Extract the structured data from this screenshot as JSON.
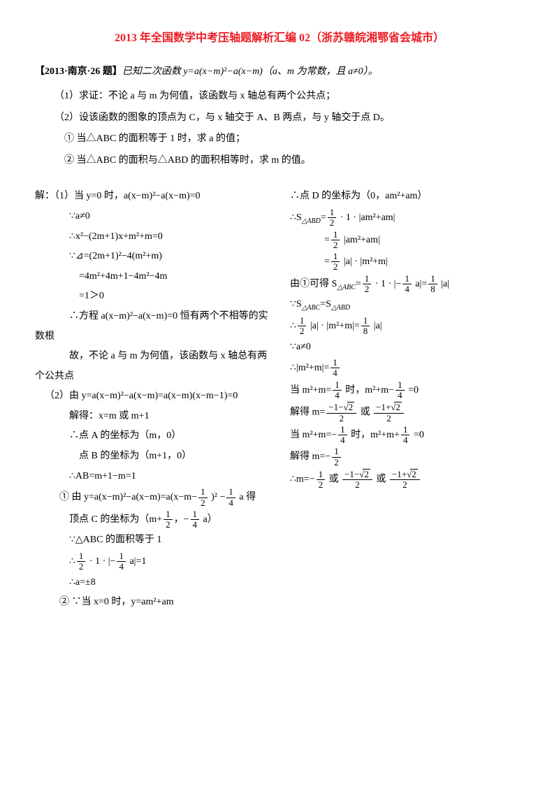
{
  "title": "2013 年全国数学中考压轴题解析汇编 02（浙苏赣皖湘鄂省会城市）",
  "header": {
    "tag": "【2013·南京·26 题】",
    "stem": "已知二次函数 y=a(x−m)²−a(x−m)（a、m 为常数，且 a≠0）。"
  },
  "q1": "（1）求证：不论 a 与 m 为何值，该函数与 x 轴总有两个公共点；",
  "q2": "（2）设该函数的图象的顶点为 C，与 x 轴交于 A、B 两点，与 y 轴交于点 D。",
  "q2a": "① 当△ABC 的面积等于 1 时，求 a 的值；",
  "q2b": "② 当△ABC 的面积与△ABD 的面积相等时，求 m 的值。",
  "left": {
    "l1": "解：（1）当 y=0 时，a(x−m)²−a(x−m)=0",
    "l2": "∵a≠0",
    "l3": "∴x²−(2m+1)x+m²+m=0",
    "l4": "∵⊿=(2m+1)²−4(m²+m)",
    "l5": "=4m²+4m+1−4m²−4m",
    "l6": "=1＞0",
    "l7": "∴方程 a(x−m)²−a(x−m)=0 恒有两个不相等的实",
    "l7b": "数根",
    "l8": "故，不论 a 与 m 为何值，该函数与 x 轴总有两",
    "l8b": "个公共点",
    "l9": "（2）由 y=a(x−m)²−a(x−m)=a(x−m)(x−m−1)=0",
    "l10": "解得：x=m 或 m+1",
    "l11": "∴点 A 的坐标为（m，0）",
    "l12": "点 B 的坐标为（m+1，0）",
    "l13": "∴AB=m+1−m=1",
    "l14a": "① 由 y=a(x−m)²−a(x−m)=a(x−m−",
    "l14b": " )² −",
    "l14c": " a 得",
    "l15a": "顶点 C 的坐标为（m+",
    "l15b": "，−",
    "l15c": " a）",
    "l16": "∵△ABC 的面积等于 1",
    "l17a": "∴",
    "l17b": " · 1 · |−",
    "l17c": " a|=1",
    "l18": "∴a=±8",
    "l19": "② ∵当 x=0 时，y=am²+am"
  },
  "right": {
    "r1": "∴点 D 的坐标为（0，am²+am）",
    "r2a": "∴S",
    "r2sub": "△ABD",
    "r2b": "=",
    "r2c": " · 1 · |am²+am|",
    "r3a": "=",
    "r3b": " |am²+am|",
    "r4a": "=",
    "r4b": " |a| · |m²+m|",
    "r5a": "由①可得 S",
    "r5sub": "△ABC",
    "r5b": "=",
    "r5c": " · 1 · |−",
    "r5d": " a|=",
    "r5e": " |a|",
    "r6a": "∵S",
    "r6sub1": "△ABC",
    "r6b": "=S",
    "r6sub2": "△ABD",
    "r7a": "∴",
    "r7b": " |a| · |m²+m|=",
    "r7c": " |a|",
    "r8": "∵a≠0",
    "r9a": "∴|m²+m|=",
    "r10a": "当 m²+m=",
    "r10b": " 时，m²+m−",
    "r10c": " =0",
    "r11a": "解得 m=",
    "r11n1": "−1−",
    "r11n2": "−1+",
    "r11b": " 或 ",
    "r12a": "当 m²+m=−",
    "r12b": " 时，m²+m+",
    "r12c": " =0",
    "r13a": "解得 m=−",
    "r14a": "∴m=−",
    "r14b": " 或 ",
    "r14c": " 或 "
  },
  "fracs": {
    "half_1": "1",
    "half_2": "2",
    "quarter_1": "1",
    "quarter_4": "4",
    "eighth_1": "1",
    "eighth_8": "8"
  }
}
